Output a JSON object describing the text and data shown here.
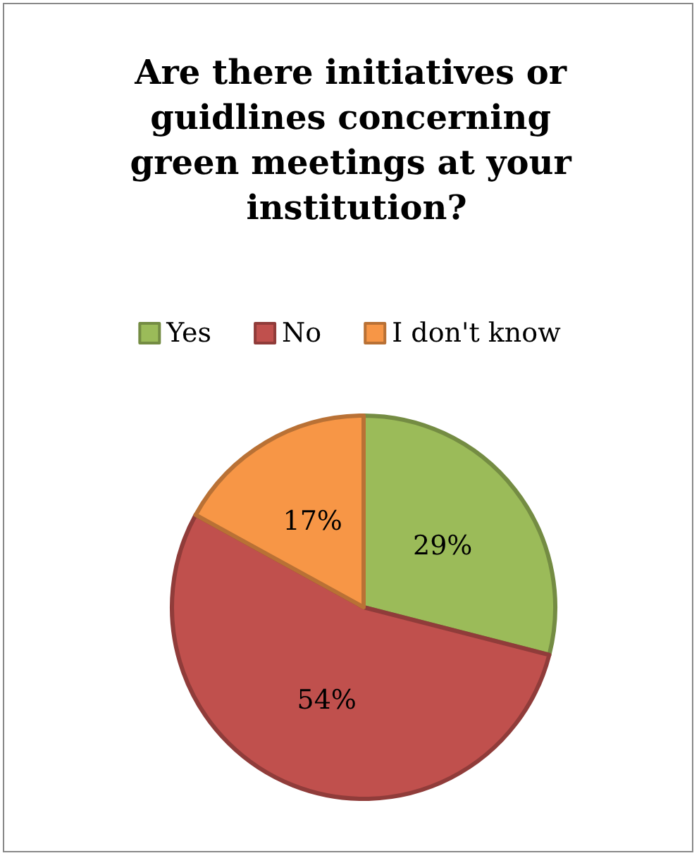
{
  "chart_data": {
    "type": "pie",
    "title": "Are there initiatives or guidlines concerning green meetings at your institution?",
    "categories": [
      "Yes",
      "No",
      "I don't know"
    ],
    "values": [
      29,
      54,
      17
    ],
    "value_labels": [
      "29%",
      "54%",
      "17%"
    ],
    "colors": [
      "#9bbb59",
      "#c0504d",
      "#f79646"
    ],
    "legend": "top"
  }
}
